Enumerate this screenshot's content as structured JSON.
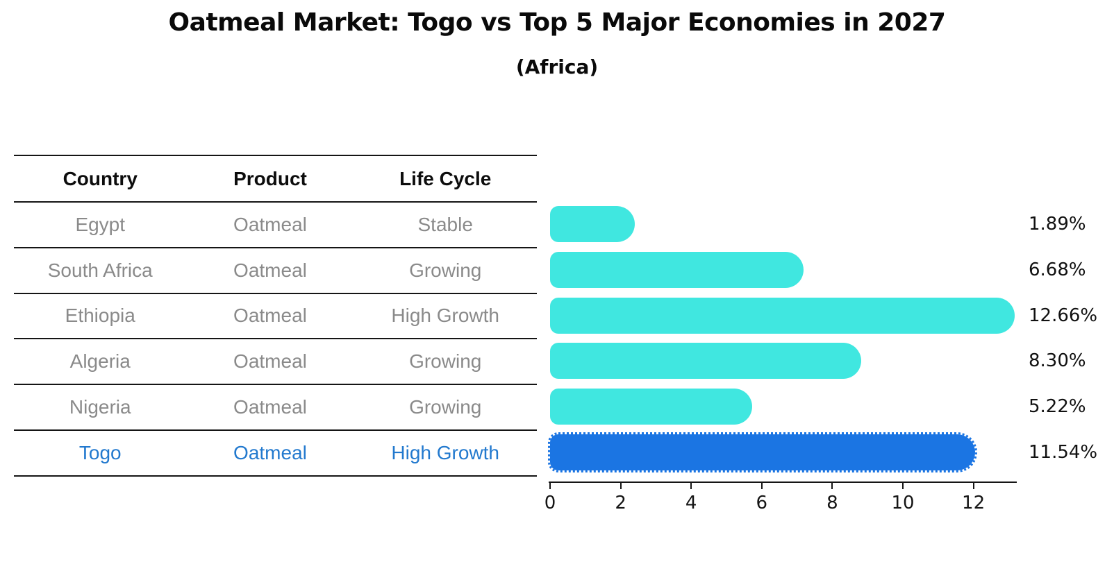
{
  "chart_data": {
    "type": "bar",
    "orientation": "horizontal",
    "title": "Oatmeal Market: Togo vs Top 5 Major Economies in 2027",
    "subtitle": "(Africa)",
    "categories": [
      "Egypt",
      "South Africa",
      "Ethiopia",
      "Algeria",
      "Nigeria",
      "Togo"
    ],
    "values": [
      1.89,
      6.68,
      12.66,
      8.3,
      5.22,
      11.54
    ],
    "value_labels": [
      "1.89%",
      "6.68%",
      "12.66%",
      "8.30%",
      "5.22%",
      "11.54%"
    ],
    "x_ticks": [
      "0",
      "2",
      "4",
      "6",
      "8",
      "10",
      "12"
    ],
    "xlim": [
      0,
      13.2
    ],
    "grid": false,
    "legend": "none",
    "bar_color_default": "#40e7e0",
    "bar_color_highlight": "#1b75e3",
    "highlight_index": 5,
    "highlight_style": "dotted-outline"
  },
  "table": {
    "headers": [
      "Country",
      "Product",
      "Life Cycle"
    ],
    "rows": [
      {
        "country": "Egypt",
        "product": "Oatmeal",
        "life_cycle": "Stable",
        "highlight": false
      },
      {
        "country": "South Africa",
        "product": "Oatmeal",
        "life_cycle": "Growing",
        "highlight": false
      },
      {
        "country": "Ethiopia",
        "product": "Oatmeal",
        "life_cycle": "High Growth",
        "highlight": false
      },
      {
        "country": "Algeria",
        "product": "Oatmeal",
        "life_cycle": "Growing",
        "highlight": false
      },
      {
        "country": "Nigeria",
        "product": "Oatmeal",
        "life_cycle": "Growing",
        "highlight": false
      },
      {
        "country": "Togo",
        "product": "Oatmeal",
        "life_cycle": "High Growth",
        "highlight": true
      }
    ],
    "text_color_default": "#8a8a8a",
    "text_color_highlight": "#2279ce"
  }
}
